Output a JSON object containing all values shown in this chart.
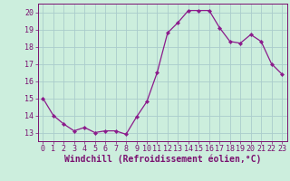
{
  "x": [
    0,
    1,
    2,
    3,
    4,
    5,
    6,
    7,
    8,
    9,
    10,
    11,
    12,
    13,
    14,
    15,
    16,
    17,
    18,
    19,
    20,
    21,
    22,
    23
  ],
  "y": [
    15.0,
    14.0,
    13.5,
    13.1,
    13.3,
    13.0,
    13.1,
    13.1,
    12.9,
    13.9,
    14.8,
    16.5,
    18.8,
    19.4,
    20.1,
    20.1,
    20.1,
    19.1,
    18.3,
    18.2,
    18.7,
    18.3,
    17.0,
    16.4
  ],
  "line_color": "#8b1a8b",
  "marker": "D",
  "marker_size": 2.2,
  "bg_color": "#cceedd",
  "grid_color": "#aacccc",
  "xlabel": "Windchill (Refroidissement éolien,°C)",
  "xlim": [
    -0.5,
    23.5
  ],
  "ylim": [
    12.5,
    20.5
  ],
  "yticks": [
    13,
    14,
    15,
    16,
    17,
    18,
    19,
    20
  ],
  "xticks": [
    0,
    1,
    2,
    3,
    4,
    5,
    6,
    7,
    8,
    9,
    10,
    11,
    12,
    13,
    14,
    15,
    16,
    17,
    18,
    19,
    20,
    21,
    22,
    23
  ],
  "tick_label_fontsize": 6.0,
  "xlabel_fontsize": 7.0,
  "axis_color": "#7a1070",
  "linewidth": 0.9
}
